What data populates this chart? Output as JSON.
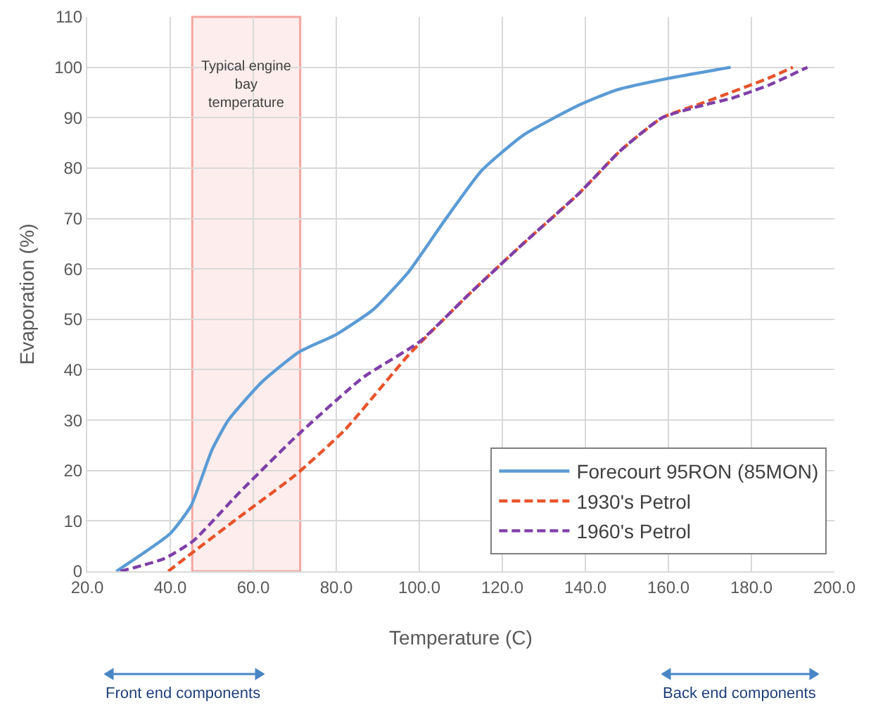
{
  "chart_data": {
    "type": "line",
    "xlabel": "Temperature (C)",
    "ylabel": "Evaporation (%)",
    "xlim": [
      20,
      200
    ],
    "ylim": [
      0,
      110
    ],
    "xticks": [
      {
        "value": 20,
        "label": "20.0"
      },
      {
        "value": 40,
        "label": "40.0"
      },
      {
        "value": 60,
        "label": "60.0"
      },
      {
        "value": 80,
        "label": "80.0"
      },
      {
        "value": 100,
        "label": "100.0"
      },
      {
        "value": 120,
        "label": "120.0"
      },
      {
        "value": 140,
        "label": "140.0"
      },
      {
        "value": 160,
        "label": "160.0"
      },
      {
        "value": 180,
        "label": "180.0"
      },
      {
        "value": 200,
        "label": "200.0"
      }
    ],
    "yticks": [
      0,
      10,
      20,
      30,
      40,
      50,
      60,
      70,
      80,
      90,
      100,
      110
    ],
    "grid": true,
    "legend": "bottom right",
    "series": [
      {
        "name": "Forecourt 95RON (85MON)",
        "color": "#5b9bd5",
        "line_style": "solid",
        "x": [
          27,
          40,
          45,
          50,
          54,
          62,
          71,
          80,
          89,
          97.5,
          106,
          115,
          125,
          138.5,
          147.5,
          160,
          175
        ],
        "values": [
          0,
          7.5,
          13,
          24,
          30,
          37.5,
          43.5,
          47,
          52,
          59.5,
          69.5,
          79.5,
          86.5,
          92.5,
          95.5,
          97.8,
          100
        ]
      },
      {
        "name": "1930's Petrol",
        "color": "#e8532b",
        "line_style": "dashed",
        "x": [
          39.5,
          45,
          57,
          70,
          82,
          97.5,
          112,
          125,
          138.5,
          148.5,
          158.5,
          168.5,
          175,
          184,
          190
        ],
        "values": [
          0,
          3.5,
          11,
          19,
          28,
          43,
          55,
          65,
          75,
          83.5,
          90,
          93,
          95,
          97.8,
          100
        ]
      },
      {
        "name": "1960's Petrol",
        "color": "#7f3fa8",
        "line_style": "dashed",
        "x": [
          28,
          38.5,
          45.5,
          56.5,
          70,
          86.5,
          100,
          112,
          125,
          138.5,
          148.5,
          158.5,
          168.5,
          175,
          184,
          193.5
        ],
        "values": [
          0,
          2.5,
          6,
          15.5,
          26.5,
          38.5,
          45.5,
          55,
          65,
          75,
          83.5,
          90,
          92.5,
          93.8,
          96.4,
          100
        ]
      }
    ],
    "bands": [
      {
        "axis": "x",
        "from": 45.3,
        "to": 71.3,
        "label": "Typical engine bay temperature",
        "color": "#f4a6a0"
      }
    ],
    "annotations": [
      "Front end components",
      "Back end components"
    ]
  }
}
